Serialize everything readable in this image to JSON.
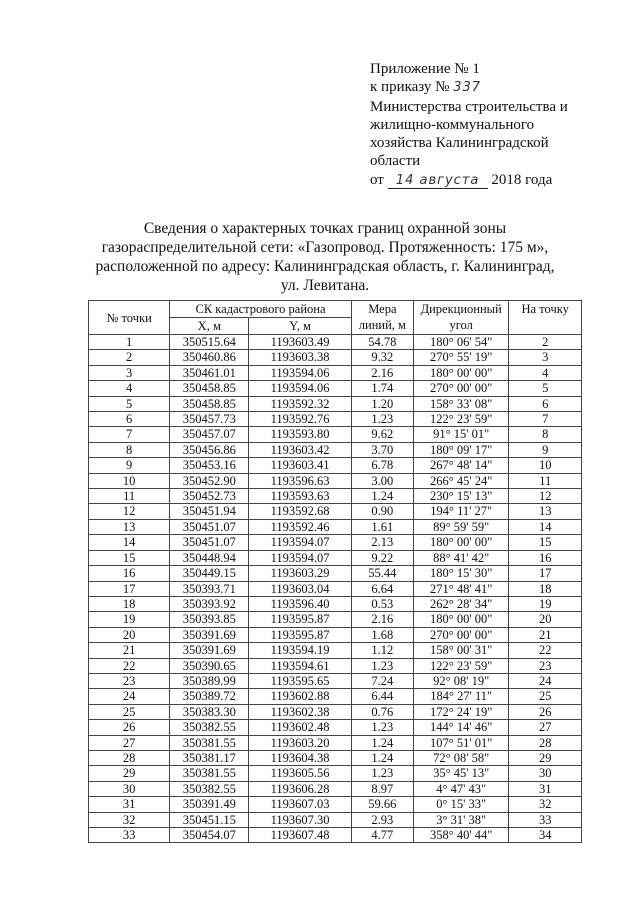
{
  "appendix": {
    "line1": "Приложение № 1",
    "order_prefix": "к приказу №",
    "order_number_handwritten": "337",
    "line3": "Министерства строительства и",
    "line4": "жилищно-коммунального",
    "line5": "хозяйства Калининградской",
    "line6": "области",
    "date_prefix": "от",
    "date_handwritten": "14 августа",
    "date_suffix": "2018 года"
  },
  "title": {
    "line1": "Сведения о характерных точках границ охранной зоны",
    "line2": "газораспределительной сети: «Газопровод. Протяженность: 175 м»,",
    "line3": "расположенной по адресу: Калининградская область, г. Калининград,",
    "line4": "ул. Левитана."
  },
  "table": {
    "headers": {
      "point": "№ точки",
      "cs": "СК кадастрового района",
      "x": "X, м",
      "y": "Y, м",
      "length1": "Мера",
      "length2": "линий, м",
      "angle1": "Дирекционный",
      "angle2": "угол",
      "to_point": "На точку"
    },
    "rows": [
      [
        "1",
        "350515.64",
        "1193603.49",
        "54.78",
        "180° 06' 54\"",
        "2"
      ],
      [
        "2",
        "350460.86",
        "1193603.38",
        "9.32",
        "270° 55' 19\"",
        "3"
      ],
      [
        "3",
        "350461.01",
        "1193594.06",
        "2.16",
        "180° 00' 00\"",
        "4"
      ],
      [
        "4",
        "350458.85",
        "1193594.06",
        "1.74",
        "270° 00' 00\"",
        "5"
      ],
      [
        "5",
        "350458.85",
        "1193592.32",
        "1.20",
        "158° 33' 08\"",
        "6"
      ],
      [
        "6",
        "350457.73",
        "1193592.76",
        "1.23",
        "122° 23' 59\"",
        "7"
      ],
      [
        "7",
        "350457.07",
        "1193593.80",
        "9.62",
        "91° 15' 01\"",
        "8"
      ],
      [
        "8",
        "350456.86",
        "1193603.42",
        "3.70",
        "180° 09' 17\"",
        "9"
      ],
      [
        "9",
        "350453.16",
        "1193603.41",
        "6.78",
        "267° 48' 14\"",
        "10"
      ],
      [
        "10",
        "350452.90",
        "1193596.63",
        "3.00",
        "266° 45' 24\"",
        "11"
      ],
      [
        "11",
        "350452.73",
        "1193593.63",
        "1.24",
        "230° 15' 13\"",
        "12"
      ],
      [
        "12",
        "350451.94",
        "1193592.68",
        "0.90",
        "194° 11' 27\"",
        "13"
      ],
      [
        "13",
        "350451.07",
        "1193592.46",
        "1.61",
        "89° 59' 59\"",
        "14"
      ],
      [
        "14",
        "350451.07",
        "1193594.07",
        "2.13",
        "180° 00' 00\"",
        "15"
      ],
      [
        "15",
        "350448.94",
        "1193594.07",
        "9.22",
        "88° 41' 42\"",
        "16"
      ],
      [
        "16",
        "350449.15",
        "1193603.29",
        "55.44",
        "180° 15' 30\"",
        "17"
      ],
      [
        "17",
        "350393.71",
        "1193603.04",
        "6.64",
        "271° 48' 41\"",
        "18"
      ],
      [
        "18",
        "350393.92",
        "1193596.40",
        "0.53",
        "262° 28' 34\"",
        "19"
      ],
      [
        "19",
        "350393.85",
        "1193595.87",
        "2.16",
        "180° 00' 00\"",
        "20"
      ],
      [
        "20",
        "350391.69",
        "1193595.87",
        "1.68",
        "270° 00' 00\"",
        "21"
      ],
      [
        "21",
        "350391.69",
        "1193594.19",
        "1.12",
        "158° 00' 31\"",
        "22"
      ],
      [
        "22",
        "350390.65",
        "1193594.61",
        "1.23",
        "122° 23' 59\"",
        "23"
      ],
      [
        "23",
        "350389.99",
        "1193595.65",
        "7.24",
        "92° 08' 19\"",
        "24"
      ],
      [
        "24",
        "350389.72",
        "1193602.88",
        "6.44",
        "184° 27' 11\"",
        "25"
      ],
      [
        "25",
        "350383.30",
        "1193602.38",
        "0.76",
        "172° 24' 19\"",
        "26"
      ],
      [
        "26",
        "350382.55",
        "1193602.48",
        "1.23",
        "144° 14' 46\"",
        "27"
      ],
      [
        "27",
        "350381.55",
        "1193603.20",
        "1.24",
        "107° 51' 01\"",
        "28"
      ],
      [
        "28",
        "350381.17",
        "1193604.38",
        "1.24",
        "72° 08' 58\"",
        "29"
      ],
      [
        "29",
        "350381.55",
        "1193605.56",
        "1.23",
        "35° 45' 13\"",
        "30"
      ],
      [
        "30",
        "350382.55",
        "1193606.28",
        "8.97",
        "4° 47' 43\"",
        "31"
      ],
      [
        "31",
        "350391.49",
        "1193607.03",
        "59.66",
        "0° 15' 33\"",
        "32"
      ],
      [
        "32",
        "350451.15",
        "1193607.30",
        "2.93",
        "3° 31' 38\"",
        "33"
      ],
      [
        "33",
        "350454.07",
        "1193607.48",
        "4.77",
        "358° 40' 44\"",
        "34"
      ]
    ]
  }
}
